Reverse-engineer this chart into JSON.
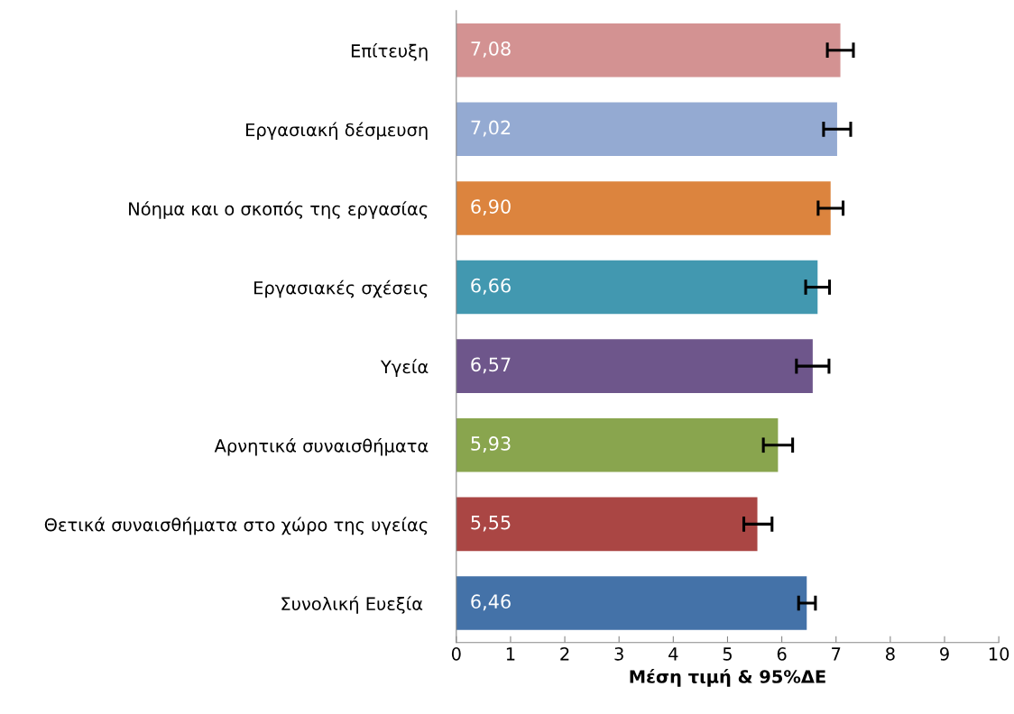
{
  "chart_data": {
    "type": "bar",
    "orientation": "horizontal",
    "xlabel": "Μέση τιμή & 95%ΔΕ",
    "categories": [
      "Επίτευξη",
      "Εργασιακή δέσμευση",
      "Νόημα και ο σκοπός της εργασίας",
      "Εργασιακές σχέσεις",
      "Υγεία",
      "Αρνητικά συναισθήματα",
      "Θετικά συναισθήματα στο χώρο της υγείας",
      "Συνολική Ευεξία "
    ],
    "values": [
      7.08,
      7.02,
      6.9,
      6.66,
      6.57,
      5.93,
      5.55,
      6.46
    ],
    "value_labels": [
      "7,08",
      "7,02",
      "6,90",
      "6,66",
      "6,57",
      "5,93",
      "5,55",
      "6,46"
    ],
    "errors": [
      [
        6.84,
        7.32
      ],
      [
        6.77,
        7.27
      ],
      [
        6.67,
        7.13
      ],
      [
        6.44,
        6.88
      ],
      [
        6.27,
        6.87
      ],
      [
        5.66,
        6.2
      ],
      [
        5.3,
        5.82
      ],
      [
        6.31,
        6.62
      ]
    ],
    "colors": [
      "#d39292",
      "#94aad2",
      "#dc843e",
      "#4298b0",
      "#6e568b",
      "#89a54e",
      "#aa4644",
      "#4472a8"
    ],
    "xlim": [
      0,
      10
    ],
    "xticks": [
      0,
      1,
      2,
      3,
      4,
      5,
      6,
      7,
      8,
      9,
      10
    ],
    "grid": false,
    "legend": false
  }
}
